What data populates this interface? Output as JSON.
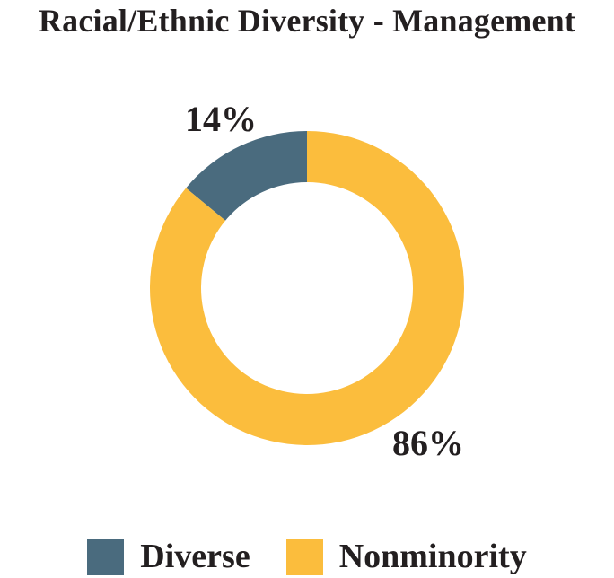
{
  "chart_data": {
    "type": "pie",
    "variant": "donut",
    "title": "Racial/Ethnic Diversity - Management",
    "categories": [
      "Diverse",
      "Nonminority"
    ],
    "values": [
      14,
      86
    ],
    "labels": [
      "14%",
      "86%"
    ],
    "colors": [
      "#4a6b7e",
      "#fbbd3d"
    ],
    "legend_position": "bottom"
  }
}
